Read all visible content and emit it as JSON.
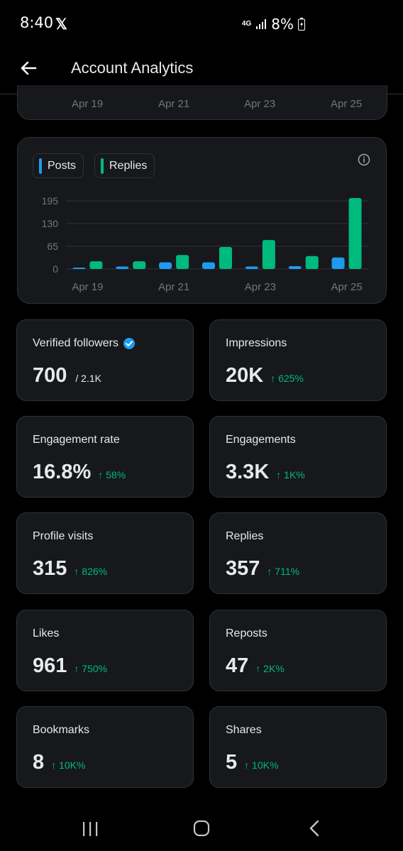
{
  "status_bar": {
    "time": "8:40",
    "app_icon": "x-logo",
    "network": "4G",
    "battery": "8%"
  },
  "header": {
    "title": "Account Analytics",
    "back_icon": "back-arrow-icon"
  },
  "top_axis": [
    "Apr 19",
    "Apr 21",
    "Apr 23",
    "Apr 25"
  ],
  "chart": {
    "legend": [
      {
        "label": "Posts",
        "color": "#1d9bf0"
      },
      {
        "label": "Replies",
        "color": "#00ba7c"
      }
    ],
    "info_icon": "info-icon"
  },
  "chart_data": {
    "type": "bar",
    "categories": [
      "Apr 19",
      "Apr 20",
      "Apr 21",
      "Apr 22",
      "Apr 23",
      "Apr 24",
      "Apr 25"
    ],
    "x_tick_labels": [
      "Apr 19",
      "Apr 21",
      "Apr 23",
      "Apr 25"
    ],
    "series": [
      {
        "name": "Posts",
        "color": "#1d9bf0",
        "values": [
          3,
          7,
          19,
          19,
          7,
          8,
          33
        ]
      },
      {
        "name": "Replies",
        "color": "#00ba7c",
        "values": [
          22,
          22,
          40,
          63,
          83,
          37,
          203
        ]
      }
    ],
    "y_ticks": [
      0,
      65,
      130,
      195
    ],
    "ylim": [
      0,
      203
    ],
    "grid": true,
    "title": "",
    "xlabel": "",
    "ylabel": ""
  },
  "stats": [
    {
      "label": "Verified followers",
      "value": "700",
      "sub": "/ 2.1K",
      "change": "",
      "verified": true
    },
    {
      "label": "Impressions",
      "value": "20K",
      "sub": "",
      "change": "↑ 625%"
    },
    {
      "label": "Engagement rate",
      "value": "16.8%",
      "sub": "",
      "change": "↑ 58%"
    },
    {
      "label": "Engagements",
      "value": "3.3K",
      "sub": "",
      "change": "↑ 1K%"
    },
    {
      "label": "Profile visits",
      "value": "315",
      "sub": "",
      "change": "↑ 826%"
    },
    {
      "label": "Replies",
      "value": "357",
      "sub": "",
      "change": "↑ 711%"
    },
    {
      "label": "Likes",
      "value": "961",
      "sub": "",
      "change": "↑ 750%"
    },
    {
      "label": "Reposts",
      "value": "47",
      "sub": "",
      "change": "↑ 2K%"
    },
    {
      "label": "Bookmarks",
      "value": "8",
      "sub": "",
      "change": "↑ 10K%"
    },
    {
      "label": "Shares",
      "value": "5",
      "sub": "",
      "change": "↑ 10K%"
    }
  ],
  "nav": {
    "recent": "recent-apps-icon",
    "home": "home-icon",
    "back": "back-icon"
  }
}
